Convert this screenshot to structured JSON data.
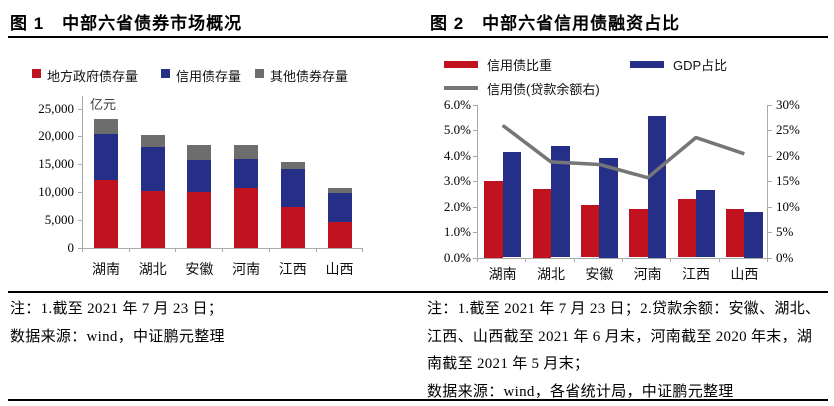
{
  "figure1": {
    "title": "图 1　中部六省债券市场概况",
    "notes": [
      "注：1.截至 2021 年 7 月 23 日；",
      "数据来源：wind，中证鹏元整理"
    ]
  },
  "figure2": {
    "title": "图 2　中部六省信用债融资占比",
    "notes": [
      "注：1.截至 2021 年 7 月 23 日；2.贷款余额：安徽、湖北、",
      "江西、山西截至 2021 年 6 月末，河南截至 2020 年末，湖",
      "南截至 2021 年 5 月末；",
      "数据来源：wind，各省统计局，中证鹏元整理"
    ]
  },
  "colors": {
    "red": "#c1121f",
    "blue": "#262f87",
    "gray": "#6d6d6d",
    "line_gray": "#767676",
    "axis": "#a9a9a9"
  },
  "chart_data": [
    {
      "type": "bar",
      "stacked": true,
      "title": "中部六省债券市场概况",
      "unit_label": "亿元",
      "categories": [
        "湖南",
        "湖北",
        "安徽",
        "河南",
        "江西",
        "山西"
      ],
      "series": [
        {
          "name": "地方政府债存量",
          "color_key": "red",
          "values": [
            12100,
            10300,
            10100,
            10700,
            7400,
            4700
          ]
        },
        {
          "name": "信用债存量",
          "color_key": "blue",
          "values": [
            8400,
            7800,
            5700,
            5300,
            6700,
            5100
          ]
        },
        {
          "name": "其他债券存量",
          "color_key": "gray",
          "values": [
            2700,
            2100,
            2600,
            2500,
            1300,
            1000
          ]
        }
      ],
      "ylim": [
        0,
        25000
      ],
      "ytick_step": 5000,
      "yticks": [
        "0",
        "5,000",
        "10,000",
        "15,000",
        "20,000",
        "25,000"
      ],
      "grid": false,
      "legend_position": "top"
    },
    {
      "type": "bar+line",
      "title": "中部六省信用债融资占比",
      "categories": [
        "湖南",
        "湖北",
        "安徽",
        "河南",
        "江西",
        "山西"
      ],
      "bar_series": [
        {
          "name": "信用债比重",
          "color_key": "red",
          "axis": "left",
          "values": [
            3.0,
            2.7,
            2.05,
            1.9,
            2.3,
            1.9
          ]
        },
        {
          "name": "GDP占比",
          "color_key": "blue",
          "axis": "left",
          "values": [
            4.15,
            4.4,
            3.9,
            5.55,
            2.65,
            1.8
          ]
        }
      ],
      "line_series": {
        "name": "信用债(贷款余额右)",
        "color_key": "line_gray",
        "axis": "right",
        "values": [
          26.0,
          18.8,
          18.3,
          15.7,
          23.6,
          20.4
        ]
      },
      "left_ylim": [
        0,
        6
      ],
      "right_ylim": [
        0,
        30
      ],
      "left_yticks": [
        "0.0%",
        "1.0%",
        "2.0%",
        "3.0%",
        "4.0%",
        "5.0%",
        "6.0%"
      ],
      "right_yticks": [
        "0%",
        "5%",
        "10%",
        "15%",
        "20%",
        "25%",
        "30%"
      ],
      "grid": false,
      "legend_position": "top"
    }
  ]
}
